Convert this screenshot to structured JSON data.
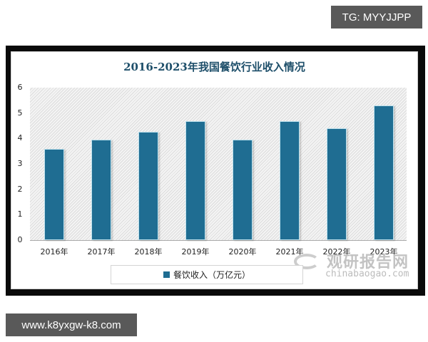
{
  "overlays": {
    "top_tag": "TG: MYYJJPP",
    "bottom_tag": "www.k8yxgw-k8.com"
  },
  "watermark": {
    "cn": "观研报告网",
    "en": "chinabaogao.com"
  },
  "colors": {
    "bar": "#1f6d92",
    "title": "#1e4f6a",
    "tag_bg": "#595959"
  },
  "chart_data": {
    "type": "bar",
    "title": "2016-2023年我国餐饮行业收入情况",
    "categories": [
      "2016年",
      "2017年",
      "2018年",
      "2019年",
      "2020年",
      "2021年",
      "2022年",
      "2023年"
    ],
    "series": [
      {
        "name": "餐饮收入（万亿元）",
        "values": [
          3.58,
          3.96,
          4.27,
          4.67,
          3.95,
          4.69,
          4.39,
          5.29
        ]
      }
    ],
    "xlabel": "",
    "ylabel": "",
    "ylim": [
      0,
      6
    ],
    "yticks": [
      "0",
      "1",
      "2",
      "3",
      "4",
      "5",
      "6"
    ],
    "grid": false,
    "legend_position": "bottom"
  }
}
